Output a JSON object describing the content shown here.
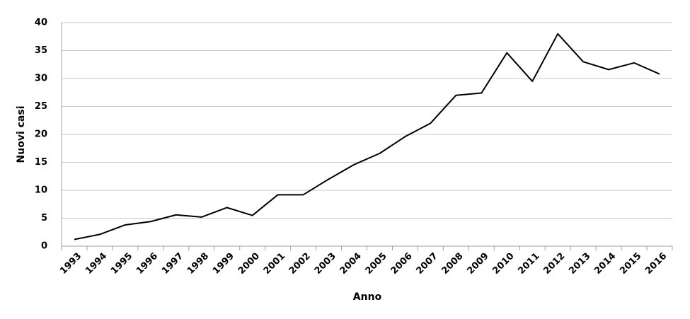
{
  "chart_data": {
    "type": "line",
    "x_label": "Anno",
    "y_label": "Nuovi casi",
    "categories": [
      "1993",
      "1994",
      "1995",
      "1996",
      "1997",
      "1998",
      "1999",
      "2000",
      "2001",
      "2002",
      "2003",
      "2004",
      "2005",
      "2006",
      "2007",
      "2008",
      "2009",
      "2010",
      "2011",
      "2012",
      "2013",
      "2014",
      "2015",
      "2016"
    ],
    "values": [
      1.2,
      2.1,
      3.8,
      4.4,
      5.6,
      5.2,
      6.9,
      5.5,
      9.2,
      9.2,
      12,
      14.6,
      16.6,
      19.6,
      22,
      27,
      27.4,
      34.6,
      29.5,
      38,
      33,
      31.6,
      32.8,
      30.8
    ],
    "color": "#000000",
    "ylim": [
      0,
      40
    ],
    "yticks": [
      0,
      5,
      10,
      15,
      20,
      25,
      30,
      35,
      40
    ],
    "grid": true
  }
}
